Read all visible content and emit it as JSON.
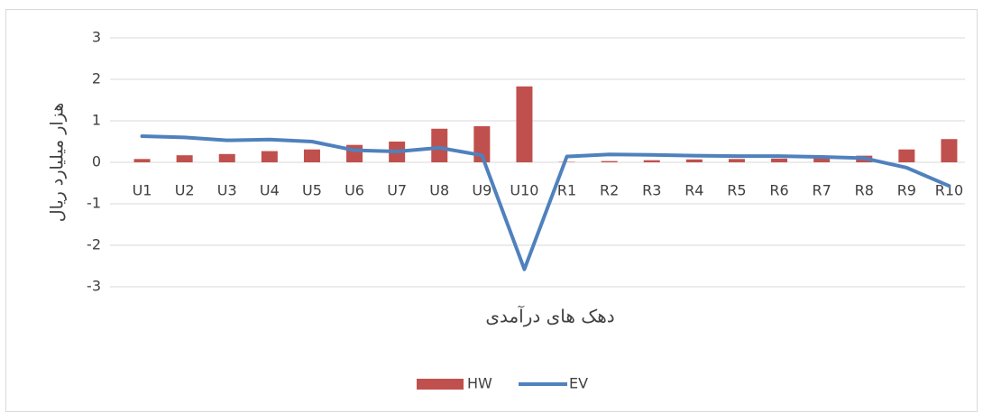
{
  "chart_data": {
    "type": "bar-line",
    "x_label": "دهک های درآمدی",
    "y_label": "هزار میلیارد ریال",
    "categories": [
      "U1",
      "U2",
      "U3",
      "U4",
      "U5",
      "U6",
      "U7",
      "U8",
      "U9",
      "U10",
      "R1",
      "R2",
      "R3",
      "R4",
      "R5",
      "R6",
      "R7",
      "R8",
      "R9",
      "R10"
    ],
    "series": [
      {
        "name": "HW",
        "type": "bar",
        "color": "#c0504d",
        "values": [
          0.08,
          0.17,
          0.2,
          0.27,
          0.31,
          0.42,
          0.5,
          0.81,
          0.87,
          1.83,
          0.01,
          0.03,
          0.05,
          0.07,
          0.08,
          0.09,
          0.11,
          0.16,
          0.31,
          0.56
        ]
      },
      {
        "name": "EV",
        "type": "line",
        "color": "#4f81bd",
        "values": [
          0.63,
          0.6,
          0.53,
          0.55,
          0.5,
          0.29,
          0.26,
          0.35,
          0.17,
          -2.58,
          0.14,
          0.19,
          0.18,
          0.16,
          0.15,
          0.15,
          0.13,
          0.1,
          -0.13,
          -0.57
        ]
      }
    ],
    "ylim": [
      -3,
      3
    ],
    "yticks": [
      -3,
      -2,
      -1,
      0,
      1,
      2,
      3
    ],
    "grid": true,
    "legend": "bottom"
  }
}
